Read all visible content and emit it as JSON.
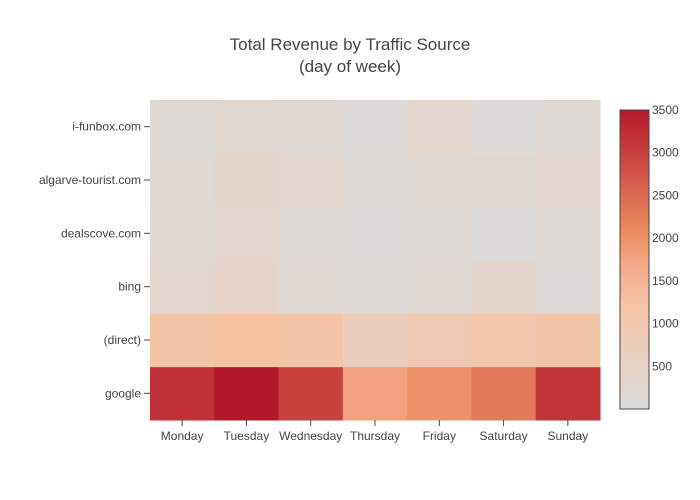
{
  "chart_data": {
    "type": "heatmap",
    "title": "Total Revenue by Traffic Source",
    "subtitle": "(day of week)",
    "x": [
      "Monday",
      "Tuesday",
      "Wednesday",
      "Thursday",
      "Friday",
      "Saturday",
      "Sunday"
    ],
    "y": [
      "google",
      "(direct)",
      "bing",
      "dealscove.com",
      "algarve-tourist.com",
      "i-funbox.com"
    ],
    "z": [
      [
        3200,
        3500,
        3000,
        1800,
        2000,
        2300,
        3150
      ],
      [
        1200,
        1250,
        1200,
        700,
        950,
        1050,
        1150
      ],
      [
        300,
        400,
        200,
        150,
        200,
        350,
        100
      ],
      [
        250,
        300,
        150,
        100,
        150,
        50,
        150
      ],
      [
        200,
        350,
        300,
        150,
        200,
        250,
        300
      ],
      [
        150,
        250,
        200,
        100,
        300,
        50,
        150
      ]
    ],
    "zrange": [
      0,
      3500
    ],
    "colorscale": [
      [
        0.0,
        "#dcdcdc"
      ],
      [
        0.35,
        "#f5c4a5"
      ],
      [
        0.5,
        "#f4a582"
      ],
      [
        0.6,
        "#ea8a5e"
      ],
      [
        0.75,
        "#d6604d"
      ],
      [
        1.0,
        "#b2182b"
      ]
    ],
    "colorbar": {
      "ticks": [
        500,
        1000,
        1500,
        2000,
        2500,
        3000,
        3500
      ],
      "tick_labels": [
        "500",
        "1000",
        "1500",
        "2000",
        "2500",
        "3000",
        "3500"
      ]
    }
  }
}
